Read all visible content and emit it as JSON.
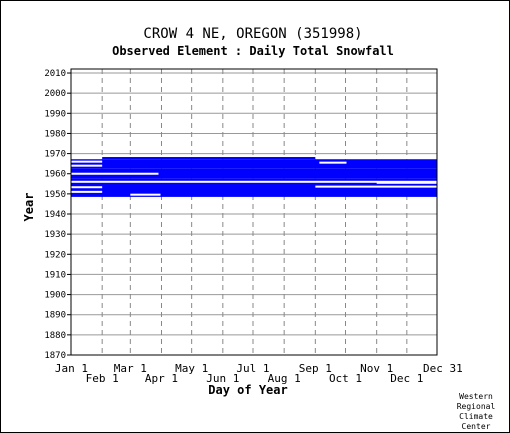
{
  "chart_data": {
    "type": "heatmap",
    "title": "CROW 4 NE, OREGON   (351998)",
    "subtitle": "Observed Element : Daily Total Snowfall",
    "xlabel": "Day of Year",
    "ylabel": "Year",
    "xlim": [
      1,
      365
    ],
    "ylim": [
      1870,
      2012
    ],
    "y_ticks": [
      1870,
      1880,
      1890,
      1900,
      1910,
      1920,
      1930,
      1940,
      1950,
      1960,
      1970,
      1980,
      1990,
      2000,
      2010
    ],
    "x_ticks": [
      {
        "label": "Jan 1",
        "day": 1,
        "row": "top"
      },
      {
        "label": "Feb 1",
        "day": 32,
        "row": "bottom"
      },
      {
        "label": "Mar 1",
        "day": 60,
        "row": "top"
      },
      {
        "label": "Apr 1",
        "day": 91,
        "row": "bottom"
      },
      {
        "label": "May 1",
        "day": 121,
        "row": "top"
      },
      {
        "label": "Jun 1",
        "day": 152,
        "row": "bottom"
      },
      {
        "label": "Jul 1",
        "day": 182,
        "row": "top"
      },
      {
        "label": "Aug 1",
        "day": 213,
        "row": "bottom"
      },
      {
        "label": "Sep 1",
        "day": 244,
        "row": "top"
      },
      {
        "label": "Oct 1",
        "day": 274,
        "row": "bottom"
      },
      {
        "label": "Nov 1",
        "day": 305,
        "row": "top"
      },
      {
        "label": "Dec 1",
        "day": 335,
        "row": "bottom"
      },
      {
        "label": "Dec 31",
        "day": 365,
        "row": "top"
      }
    ],
    "data_color": "#0000ff",
    "series": [
      {
        "name": "observed",
        "coverage": [
          {
            "year_from": 1948.5,
            "year_to": 1957.8,
            "day_from": 1,
            "day_to": 365
          },
          {
            "year_from": 1957.8,
            "year_to": 1962.5,
            "day_from": 1,
            "day_to": 365
          },
          {
            "year_from": 1962.5,
            "year_to": 1967.2,
            "day_from": 1,
            "day_to": 365
          },
          {
            "year_from": 1967.2,
            "year_to": 1968.3,
            "day_from": 32,
            "day_to": 244
          }
        ],
        "gaps": [
          {
            "year": 1951.0,
            "day_from": 1,
            "day_to": 32
          },
          {
            "year": 1953.3,
            "day_from": 1,
            "day_to": 32
          },
          {
            "year": 1953.6,
            "day_from": 244,
            "day_to": 365
          },
          {
            "year": 1955.5,
            "day_from": 305,
            "day_to": 365
          },
          {
            "year": 1956.0,
            "day_from": 1,
            "day_to": 365
          },
          {
            "year": 1960.0,
            "day_from": 1,
            "day_to": 88
          },
          {
            "year": 1964.0,
            "day_from": 1,
            "day_to": 32
          },
          {
            "year": 1966.0,
            "day_from": 1,
            "day_to": 32
          },
          {
            "year": 1965.5,
            "day_from": 248,
            "day_to": 275
          },
          {
            "year": 1949.6,
            "day_from": 60,
            "day_to": 90
          }
        ]
      }
    ],
    "grid": true,
    "legend": "none"
  },
  "footer": {
    "credit_lines": [
      "Western",
      "Regional",
      "Climate",
      "Center"
    ]
  }
}
